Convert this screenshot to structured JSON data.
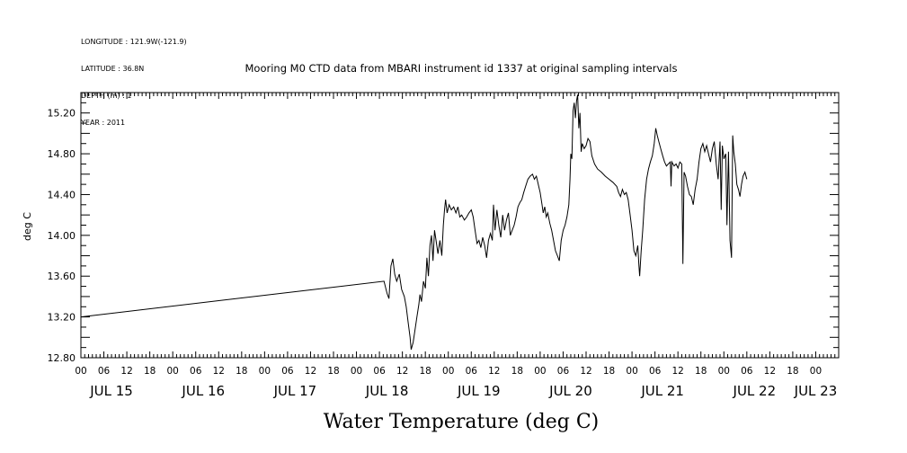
{
  "header": {
    "meta": [
      "LONGITUDE : 121.9W(-121.9)",
      "LATITUDE : 36.8N",
      "DEPTH (m) : 1",
      "YEAR : 2011"
    ]
  },
  "chart_data": {
    "type": "line",
    "title": "Mooring M0 CTD data from MBARI instrument id 1337 at original sampling intervals",
    "xlabel": "Water Temperature (deg C)",
    "ylabel": "deg C",
    "ylim": [
      12.8,
      15.4
    ],
    "yticks": [
      "12.80",
      "13.20",
      "13.60",
      "14.00",
      "14.40",
      "14.80",
      "15.20"
    ],
    "xlim_hours": [
      0,
      198
    ],
    "hour_ticks": [
      "00",
      "06",
      "12",
      "18",
      "00",
      "06",
      "12",
      "18",
      "00",
      "06",
      "12",
      "18",
      "00",
      "06",
      "12",
      "18",
      "00",
      "06",
      "12",
      "18",
      "00",
      "06",
      "12",
      "18",
      "00",
      "06",
      "12",
      "18",
      "00",
      "06",
      "12",
      "18",
      "00"
    ],
    "day_labels": [
      "JUL 15",
      "JUL 16",
      "JUL 17",
      "JUL 18",
      "JUL 19",
      "JUL 20",
      "JUL 21",
      "JUL 22",
      "JUL 23"
    ],
    "grid": false,
    "series": [
      {
        "color": "#000000",
        "points": [
          [
            0,
            13.2
          ],
          [
            79.2,
            13.55
          ],
          [
            80.0,
            13.43
          ],
          [
            80.5,
            13.38
          ],
          [
            81.0,
            13.7
          ],
          [
            81.5,
            13.77
          ],
          [
            82.0,
            13.62
          ],
          [
            82.5,
            13.55
          ],
          [
            83.2,
            13.62
          ],
          [
            83.8,
            13.47
          ],
          [
            84.5,
            13.4
          ],
          [
            85.0,
            13.3
          ],
          [
            85.5,
            13.15
          ],
          [
            86.0,
            13.0
          ],
          [
            86.3,
            12.88
          ],
          [
            86.8,
            12.95
          ],
          [
            87.2,
            13.05
          ],
          [
            87.8,
            13.2
          ],
          [
            88.3,
            13.32
          ],
          [
            88.6,
            13.42
          ],
          [
            89.0,
            13.35
          ],
          [
            89.5,
            13.55
          ],
          [
            90.0,
            13.48
          ],
          [
            90.4,
            13.78
          ],
          [
            90.8,
            13.6
          ],
          [
            91.2,
            13.9
          ],
          [
            91.6,
            14.0
          ],
          [
            92.0,
            13.75
          ],
          [
            92.4,
            14.05
          ],
          [
            92.8,
            13.95
          ],
          [
            93.3,
            13.82
          ],
          [
            93.8,
            13.95
          ],
          [
            94.3,
            13.8
          ],
          [
            94.7,
            14.1
          ],
          [
            95.0,
            14.25
          ],
          [
            95.3,
            14.35
          ],
          [
            95.7,
            14.22
          ],
          [
            96.2,
            14.3
          ],
          [
            96.8,
            14.25
          ],
          [
            97.4,
            14.28
          ],
          [
            98.0,
            14.22
          ],
          [
            98.5,
            14.28
          ],
          [
            99.0,
            14.18
          ],
          [
            99.5,
            14.2
          ],
          [
            100.2,
            14.15
          ],
          [
            100.8,
            14.18
          ],
          [
            101.4,
            14.22
          ],
          [
            102.0,
            14.25
          ],
          [
            102.5,
            14.18
          ],
          [
            103.0,
            14.05
          ],
          [
            103.5,
            13.92
          ],
          [
            104.0,
            13.95
          ],
          [
            104.5,
            13.88
          ],
          [
            105.0,
            13.98
          ],
          [
            105.5,
            13.9
          ],
          [
            106.0,
            13.78
          ],
          [
            106.5,
            13.95
          ],
          [
            107.0,
            14.02
          ],
          [
            107.5,
            13.95
          ],
          [
            107.8,
            14.3
          ],
          [
            108.2,
            14.05
          ],
          [
            108.7,
            14.25
          ],
          [
            109.2,
            14.1
          ],
          [
            109.7,
            13.98
          ],
          [
            110.2,
            14.2
          ],
          [
            110.7,
            14.05
          ],
          [
            111.2,
            14.15
          ],
          [
            111.7,
            14.22
          ],
          [
            112.2,
            14.0
          ],
          [
            112.7,
            14.05
          ],
          [
            113.2,
            14.1
          ],
          [
            113.7,
            14.18
          ],
          [
            114.2,
            14.28
          ],
          [
            114.7,
            14.32
          ],
          [
            115.2,
            14.35
          ],
          [
            115.7,
            14.42
          ],
          [
            116.2,
            14.48
          ],
          [
            116.8,
            14.55
          ],
          [
            117.4,
            14.58
          ],
          [
            118.0,
            14.6
          ],
          [
            118.5,
            14.55
          ],
          [
            119.0,
            14.58
          ],
          [
            119.5,
            14.5
          ],
          [
            120.0,
            14.42
          ],
          [
            120.5,
            14.3
          ],
          [
            120.8,
            14.22
          ],
          [
            121.2,
            14.28
          ],
          [
            121.6,
            14.18
          ],
          [
            122.0,
            14.22
          ],
          [
            122.5,
            14.12
          ],
          [
            123.0,
            14.05
          ],
          [
            123.5,
            13.95
          ],
          [
            124.0,
            13.85
          ],
          [
            124.5,
            13.8
          ],
          [
            125.0,
            13.75
          ],
          [
            125.5,
            13.95
          ],
          [
            126.0,
            14.05
          ],
          [
            126.5,
            14.1
          ],
          [
            127.0,
            14.18
          ],
          [
            127.5,
            14.3
          ],
          [
            127.8,
            14.55
          ],
          [
            128.0,
            14.8
          ],
          [
            128.3,
            14.75
          ],
          [
            128.6,
            15.22
          ],
          [
            128.9,
            15.3
          ],
          [
            129.2,
            15.15
          ],
          [
            129.5,
            15.32
          ],
          [
            129.8,
            15.38
          ],
          [
            130.1,
            15.05
          ],
          [
            130.4,
            15.2
          ],
          [
            130.7,
            14.82
          ],
          [
            131.0,
            14.9
          ],
          [
            131.5,
            14.85
          ],
          [
            132.0,
            14.88
          ],
          [
            132.5,
            14.95
          ],
          [
            133.0,
            14.92
          ],
          [
            133.5,
            14.78
          ],
          [
            134.2,
            14.7
          ],
          [
            135.0,
            14.65
          ],
          [
            136.0,
            14.62
          ],
          [
            137.0,
            14.58
          ],
          [
            138.0,
            14.55
          ],
          [
            139.0,
            14.52
          ],
          [
            140.0,
            14.48
          ],
          [
            140.5,
            14.42
          ],
          [
            141.0,
            14.38
          ],
          [
            141.5,
            14.45
          ],
          [
            142.0,
            14.4
          ],
          [
            142.5,
            14.42
          ],
          [
            143.0,
            14.35
          ],
          [
            143.5,
            14.2
          ],
          [
            144.0,
            14.05
          ],
          [
            144.5,
            13.85
          ],
          [
            145.0,
            13.8
          ],
          [
            145.5,
            13.9
          ],
          [
            145.8,
            13.7
          ],
          [
            146.0,
            13.6
          ],
          [
            146.4,
            13.85
          ],
          [
            146.8,
            14.05
          ],
          [
            147.3,
            14.35
          ],
          [
            147.8,
            14.55
          ],
          [
            148.3,
            14.65
          ],
          [
            148.8,
            14.72
          ],
          [
            149.3,
            14.78
          ],
          [
            149.8,
            14.9
          ],
          [
            150.2,
            15.05
          ],
          [
            150.6,
            14.98
          ],
          [
            151.0,
            14.92
          ],
          [
            151.5,
            14.85
          ],
          [
            152.0,
            14.78
          ],
          [
            152.5,
            14.72
          ],
          [
            153.0,
            14.68
          ],
          [
            153.5,
            14.7
          ],
          [
            154.0,
            14.72
          ],
          [
            154.2,
            14.48
          ],
          [
            154.4,
            14.72
          ],
          [
            155.0,
            14.68
          ],
          [
            155.5,
            14.7
          ],
          [
            156.0,
            14.66
          ],
          [
            156.5,
            14.72
          ],
          [
            157.0,
            14.7
          ],
          [
            157.3,
            13.72
          ],
          [
            157.6,
            14.62
          ],
          [
            158.0,
            14.58
          ],
          [
            158.5,
            14.48
          ],
          [
            159.0,
            14.4
          ],
          [
            159.5,
            14.38
          ],
          [
            160.0,
            14.3
          ],
          [
            160.5,
            14.45
          ],
          [
            161.0,
            14.55
          ],
          [
            161.5,
            14.72
          ],
          [
            162.0,
            14.85
          ],
          [
            162.5,
            14.9
          ],
          [
            163.0,
            14.82
          ],
          [
            163.5,
            14.88
          ],
          [
            164.0,
            14.8
          ],
          [
            164.5,
            14.72
          ],
          [
            165.0,
            14.85
          ],
          [
            165.5,
            14.92
          ],
          [
            166.0,
            14.7
          ],
          [
            166.5,
            14.55
          ],
          [
            167.0,
            14.92
          ],
          [
            167.3,
            14.25
          ],
          [
            167.6,
            14.88
          ],
          [
            168.0,
            14.75
          ],
          [
            168.5,
            14.8
          ],
          [
            168.8,
            14.1
          ],
          [
            169.2,
            14.82
          ],
          [
            169.6,
            13.95
          ],
          [
            170.0,
            13.78
          ],
          [
            170.3,
            14.98
          ],
          [
            170.6,
            14.82
          ],
          [
            171.0,
            14.7
          ],
          [
            171.4,
            14.5
          ],
          [
            171.8,
            14.45
          ],
          [
            172.2,
            14.38
          ],
          [
            172.6,
            14.5
          ],
          [
            173.0,
            14.58
          ],
          [
            173.5,
            14.62
          ],
          [
            174.0,
            14.55
          ]
        ]
      }
    ]
  }
}
